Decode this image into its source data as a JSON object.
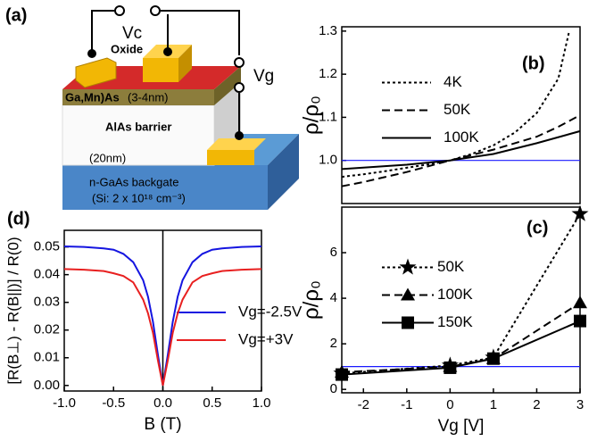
{
  "diagram": {
    "panel": "(a)",
    "vc": "Vc",
    "oxide": "Oxide",
    "vg": "Vg",
    "gamnas": "Ga,Mn)As",
    "gamnas_thickness": "(3-4nm)",
    "barrier": "AlAs barrier",
    "barrier_thickness": "(20nm)",
    "backgate": "n-GaAs backgate",
    "doping": "(Si: 2 x 10¹⁸ cm⁻³)"
  },
  "chart_data": [
    {
      "type": "line",
      "panel": "(b)",
      "ylabel": "ρ/ρ₀",
      "xlim": [
        -2.5,
        3
      ],
      "ylim": [
        0.9,
        1.31
      ],
      "yticks": [
        {
          "value": 1.0,
          "label": "1.0"
        },
        {
          "value": 1.1,
          "label": "1.1"
        },
        {
          "value": 1.2,
          "label": "1.2"
        },
        {
          "value": 1.3,
          "label": "1.3"
        }
      ],
      "hline": 1,
      "hline_color": "#1a1aff",
      "legend": "center left",
      "series": [
        {
          "name": "4K",
          "color": "#000000",
          "style": "dotted",
          "x": [
            -2.5,
            -2,
            -1.5,
            -1,
            -0.5,
            0,
            0.5,
            1,
            1.5,
            2,
            2.5,
            2.75
          ],
          "values": [
            0.962,
            0.968,
            0.975,
            0.983,
            0.991,
            1.0,
            1.015,
            1.035,
            1.065,
            1.11,
            1.19,
            1.3
          ]
        },
        {
          "name": "50K",
          "color": "#000000",
          "style": "dashed",
          "x": [
            -2.5,
            -2,
            -1,
            0,
            1,
            2,
            2.5,
            3
          ],
          "values": [
            0.94,
            0.95,
            0.973,
            1.0,
            1.025,
            1.055,
            1.078,
            1.105
          ]
        },
        {
          "name": "100K",
          "color": "#000000",
          "style": "solid",
          "x": [
            -2.5,
            -1,
            0,
            1,
            2,
            3
          ],
          "values": [
            0.98,
            0.99,
            1.0,
            1.015,
            1.04,
            1.068
          ]
        }
      ]
    },
    {
      "type": "line",
      "panel": "(c)",
      "ylabel": "ρ/ρ₀",
      "xlabel": "Vg [V]",
      "xlim": [
        -2.5,
        3
      ],
      "ylim": [
        -0.15,
        8
      ],
      "xticks": [
        -2,
        -1,
        0,
        1,
        2,
        3
      ],
      "yticks": [
        0,
        2,
        4,
        6
      ],
      "hline": 1,
      "hline_color": "#1a1aff",
      "legend": "center left",
      "series": [
        {
          "name": "50K",
          "color": "#000000",
          "style": "dotted",
          "marker": "star",
          "x": [
            -2.5,
            0,
            1,
            3
          ],
          "values": [
            0.7,
            1.05,
            1.4,
            7.7
          ]
        },
        {
          "name": "100K",
          "color": "#000000",
          "style": "dashed",
          "marker": "triangle",
          "x": [
            -2.5,
            0,
            1,
            3
          ],
          "values": [
            0.75,
            1.0,
            1.35,
            3.8
          ]
        },
        {
          "name": "150K",
          "color": "#000000",
          "style": "solid",
          "marker": "square",
          "x": [
            -2.5,
            0,
            1,
            3
          ],
          "values": [
            0.65,
            0.95,
            1.35,
            3.0
          ]
        }
      ]
    },
    {
      "type": "line",
      "panel": "(d)",
      "ylabel": "[R(B⊥) - R(B||)] / R(0)",
      "xlabel": "B (T)",
      "xlim": [
        -1,
        1
      ],
      "ylim": [
        -0.002,
        0.056
      ],
      "xticks": [
        {
          "value": -1,
          "label": "-1.0"
        },
        {
          "value": -0.5,
          "label": "-0.5"
        },
        {
          "value": 0,
          "label": "0.0"
        },
        {
          "value": 0.5,
          "label": "0.5"
        },
        {
          "value": 1,
          "label": "1.0"
        }
      ],
      "yticks": [
        {
          "value": 0,
          "label": "0.00"
        },
        {
          "value": 0.01,
          "label": "0.01"
        },
        {
          "value": 0.02,
          "label": "0.02"
        },
        {
          "value": 0.03,
          "label": "0.03"
        },
        {
          "value": 0.04,
          "label": "0.04"
        },
        {
          "value": 0.05,
          "label": "0.05"
        }
      ],
      "vline": 0,
      "vline_color": "#000000",
      "legend": "lower right",
      "series": [
        {
          "name": "Vg=-2.5V",
          "color": "#1515e0",
          "style": "solid",
          "x": [
            -1,
            -0.8,
            -0.6,
            -0.5,
            -0.4,
            -0.3,
            -0.2,
            -0.15,
            -0.1,
            -0.05,
            0,
            0.05,
            0.1,
            0.15,
            0.2,
            0.3,
            0.4,
            0.5,
            0.6,
            0.8,
            1
          ],
          "values": [
            0.0502,
            0.05,
            0.0495,
            0.049,
            0.0475,
            0.0445,
            0.038,
            0.032,
            0.023,
            0.011,
            0.0,
            0.011,
            0.023,
            0.032,
            0.038,
            0.0445,
            0.0475,
            0.049,
            0.0495,
            0.05,
            0.0502
          ]
        },
        {
          "name": "Vg=+3V",
          "color": "#e82020",
          "style": "solid",
          "x": [
            -1,
            -0.8,
            -0.6,
            -0.5,
            -0.4,
            -0.3,
            -0.2,
            -0.15,
            -0.1,
            -0.05,
            0,
            0.05,
            0.1,
            0.15,
            0.2,
            0.3,
            0.4,
            0.5,
            0.6,
            0.8,
            1
          ],
          "values": [
            0.042,
            0.0418,
            0.0413,
            0.0405,
            0.0395,
            0.0372,
            0.031,
            0.026,
            0.019,
            0.009,
            0.0,
            0.009,
            0.019,
            0.026,
            0.031,
            0.0372,
            0.0395,
            0.0405,
            0.0413,
            0.0418,
            0.042
          ]
        }
      ]
    }
  ]
}
